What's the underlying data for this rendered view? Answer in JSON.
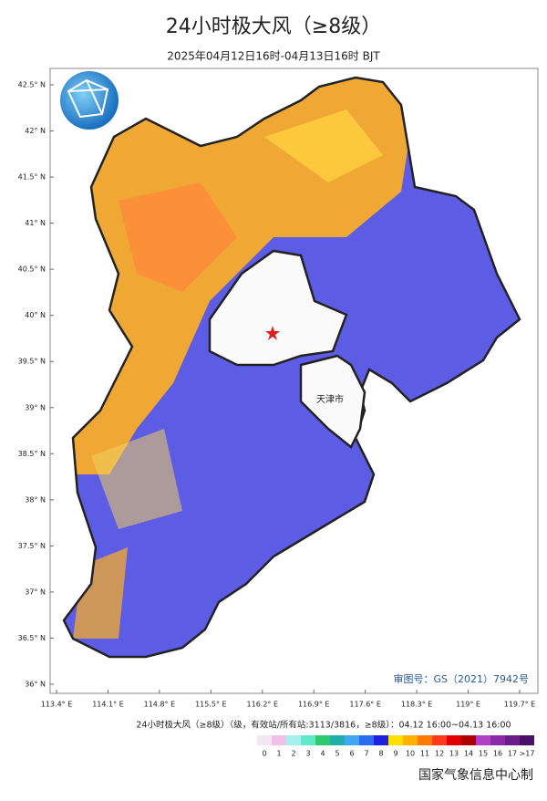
{
  "header": {
    "title": "24小时极大风（≥8级）",
    "subtitle": "2025年04月12日16时-04月13日16时 BJT"
  },
  "map": {
    "lat_ticks": [
      {
        "value": 42.5,
        "label": "42.5° N"
      },
      {
        "value": 42,
        "label": "42° N"
      },
      {
        "value": 41.5,
        "label": "41.5° N"
      },
      {
        "value": 41,
        "label": "41° N"
      },
      {
        "value": 40.5,
        "label": "40.5° N"
      },
      {
        "value": 40,
        "label": "40° N"
      },
      {
        "value": 39.5,
        "label": "39.5° N"
      },
      {
        "value": 39,
        "label": "39° N"
      },
      {
        "value": 38.5,
        "label": "38.5° N"
      },
      {
        "value": 38,
        "label": "38° N"
      },
      {
        "value": 37.5,
        "label": "37.5° N"
      },
      {
        "value": 37,
        "label": "37° N"
      },
      {
        "value": 36.5,
        "label": "36.5° N"
      },
      {
        "value": 36,
        "label": "36° N"
      }
    ],
    "lon_ticks": [
      {
        "value": 113.4,
        "label": "113.4° E"
      },
      {
        "value": 114.1,
        "label": "114.1° E"
      },
      {
        "value": 114.8,
        "label": "114.8° E"
      },
      {
        "value": 115.5,
        "label": "115.5° E"
      },
      {
        "value": 116.2,
        "label": "116.2° E"
      },
      {
        "value": 116.9,
        "label": "116.9° E"
      },
      {
        "value": 117.6,
        "label": "117.6° E"
      },
      {
        "value": 118.3,
        "label": "118.3° E"
      },
      {
        "value": 119,
        "label": "119° E"
      },
      {
        "value": 119.7,
        "label": "119.7° E"
      }
    ],
    "place_label": "天津市",
    "review_number": "审图号：GS（2021）7942号"
  },
  "legend": {
    "title": "24小时极大风（≥8级）（级，有效站/所有站:3113/3816，≥8级）：04.12 16:00~04.13 16:00",
    "labels": [
      0,
      1,
      2,
      3,
      4,
      5,
      6,
      7,
      8,
      9,
      10,
      11,
      12,
      13,
      14,
      15,
      16,
      17,
      ">17"
    ],
    "colors": [
      "#f3e6f3",
      "#f0c0e8",
      "#a8f0f0",
      "#60e8c8",
      "#30c870",
      "#20b0a8",
      "#3fa8f0",
      "#2a6cf0",
      "#1f1fe0",
      "#ffe000",
      "#ffb000",
      "#ff7a00",
      "#ff3a1a",
      "#e00000",
      "#b00000",
      "#b040c8",
      "#8a2aa8",
      "#6a1c88",
      "#4a1068"
    ]
  },
  "footer": {
    "credit": "国家气象信息中心制"
  }
}
